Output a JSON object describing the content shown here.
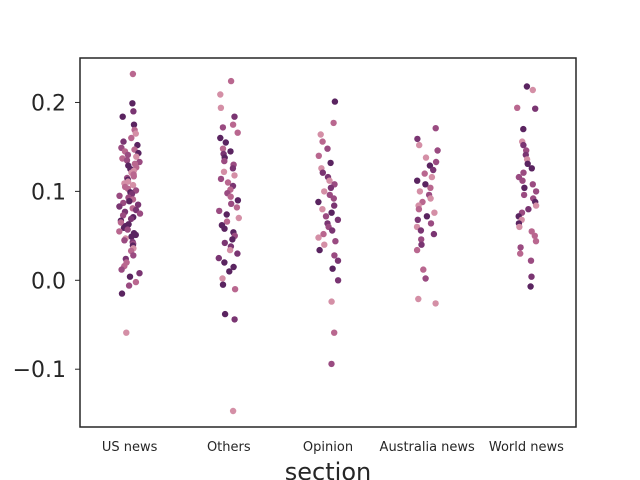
{
  "chart_data": {
    "type": "scatter",
    "subtype": "strip",
    "xlabel": "section",
    "ylabel": "",
    "categories": [
      "US news",
      "Others",
      "Opinion",
      "Australia news",
      "World news"
    ],
    "ylim": [
      -0.165,
      0.25
    ],
    "yticks": [
      -0.1,
      0.0,
      0.1,
      0.2
    ],
    "ytick_labels": [
      "−0.1",
      "0.0",
      "0.1",
      "0.2"
    ],
    "grid": false,
    "legend": "none",
    "palette": [
      "#d48fa6",
      "#b9678f",
      "#9a4b81",
      "#7a3572",
      "#5a2460"
    ],
    "series": [
      {
        "category": "US news",
        "values": [
          0.232,
          0.199,
          0.19,
          0.184,
          0.175,
          0.169,
          0.165,
          0.16,
          0.156,
          0.152,
          0.149,
          0.147,
          0.145,
          0.143,
          0.141,
          0.139,
          0.137,
          0.135,
          0.133,
          0.131,
          0.129,
          0.127,
          0.125,
          0.123,
          0.121,
          0.119,
          0.117,
          0.115,
          0.113,
          0.111,
          0.109,
          0.107,
          0.105,
          0.103,
          0.101,
          0.099,
          0.097,
          0.095,
          0.093,
          0.091,
          0.089,
          0.087,
          0.085,
          0.083,
          0.081,
          0.079,
          0.077,
          0.075,
          0.073,
          0.071,
          0.069,
          0.067,
          0.065,
          0.063,
          0.061,
          0.059,
          0.057,
          0.055,
          0.053,
          0.051,
          0.049,
          0.047,
          0.045,
          0.043,
          0.041,
          0.039,
          0.036,
          0.033,
          0.028,
          0.024,
          0.02,
          0.016,
          0.012,
          0.008,
          0.004,
          -0.002,
          -0.006,
          -0.015,
          -0.059
        ]
      },
      {
        "category": "Others",
        "values": [
          0.224,
          0.209,
          0.194,
          0.184,
          0.175,
          0.172,
          0.166,
          0.16,
          0.155,
          0.148,
          0.145,
          0.142,
          0.138,
          0.134,
          0.13,
          0.126,
          0.122,
          0.118,
          0.114,
          0.11,
          0.106,
          0.102,
          0.098,
          0.094,
          0.09,
          0.086,
          0.082,
          0.078,
          0.074,
          0.07,
          0.066,
          0.062,
          0.058,
          0.054,
          0.05,
          0.046,
          0.042,
          0.038,
          0.034,
          0.03,
          0.025,
          0.02,
          0.015,
          0.01,
          0.002,
          -0.005,
          -0.01,
          -0.038,
          -0.044,
          -0.147
        ]
      },
      {
        "category": "Opinion",
        "values": [
          0.201,
          0.177,
          0.164,
          0.156,
          0.148,
          0.14,
          0.132,
          0.126,
          0.121,
          0.116,
          0.112,
          0.108,
          0.104,
          0.1,
          0.096,
          0.092,
          0.088,
          0.084,
          0.08,
          0.076,
          0.072,
          0.068,
          0.064,
          0.06,
          0.056,
          0.052,
          0.048,
          0.044,
          0.04,
          0.034,
          0.028,
          0.022,
          0.013,
          0.0,
          -0.024,
          -0.059,
          -0.094
        ]
      },
      {
        "category": "Australia news",
        "values": [
          0.171,
          0.159,
          0.152,
          0.146,
          0.138,
          0.133,
          0.129,
          0.124,
          0.12,
          0.116,
          0.112,
          0.108,
          0.104,
          0.1,
          0.096,
          0.092,
          0.088,
          0.084,
          0.08,
          0.076,
          0.072,
          0.068,
          0.064,
          0.06,
          0.056,
          0.052,
          0.046,
          0.04,
          0.034,
          0.012,
          0.002,
          -0.021,
          -0.026
        ]
      },
      {
        "category": "World news",
        "values": [
          0.218,
          0.214,
          0.194,
          0.193,
          0.17,
          0.156,
          0.152,
          0.146,
          0.141,
          0.136,
          0.131,
          0.126,
          0.121,
          0.116,
          0.112,
          0.108,
          0.104,
          0.1,
          0.096,
          0.092,
          0.088,
          0.084,
          0.08,
          0.076,
          0.072,
          0.068,
          0.064,
          0.06,
          0.055,
          0.05,
          0.044,
          0.037,
          0.03,
          0.022,
          0.004,
          -0.007
        ]
      }
    ]
  }
}
